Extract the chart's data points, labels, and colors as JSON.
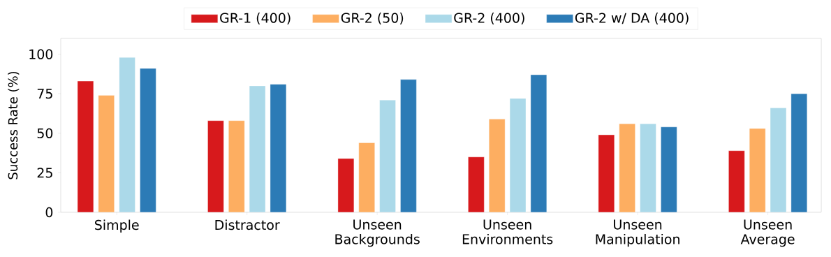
{
  "chart_data": {
    "type": "bar",
    "ylabel": "Success Rate (%)",
    "categories": [
      "Simple",
      "Distractor",
      "Unseen Backgrounds",
      "Unseen Environments",
      "Unseen Manipulation",
      "Unseen Average"
    ],
    "series": [
      {
        "name": "GR-1 (400)",
        "color": "#d7191c",
        "values": [
          83,
          58,
          34,
          35,
          49,
          39
        ]
      },
      {
        "name": "GR-2 (50)",
        "color": "#fdae61",
        "values": [
          74,
          58,
          44,
          59,
          56,
          53
        ]
      },
      {
        "name": "GR-2 (400)",
        "color": "#abd9e9",
        "values": [
          98,
          80,
          71,
          72,
          56,
          66
        ]
      },
      {
        "name": "GR-2 w/ DA (400)",
        "color": "#2c7bb6",
        "values": [
          91,
          81,
          84,
          87,
          54,
          75
        ]
      }
    ],
    "ylim": [
      0,
      110
    ],
    "yticks": [
      0,
      25,
      50,
      75,
      100
    ],
    "legend": "top"
  }
}
